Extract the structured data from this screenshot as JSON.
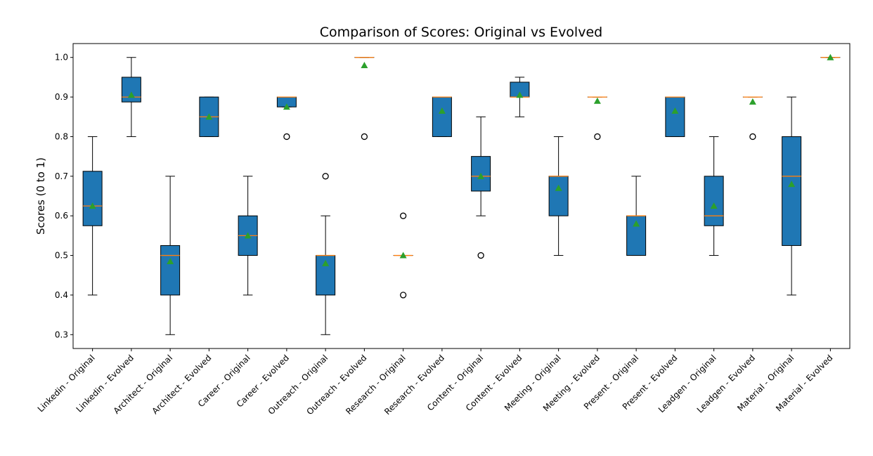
{
  "chart_data": {
    "type": "box",
    "title": "Comparison of Scores: Original vs Evolved",
    "xlabel": "",
    "ylabel": "Scores (0 to 1)",
    "ylim": [
      0.265,
      1.035
    ],
    "yticks": [
      0.3,
      0.4,
      0.5,
      0.6,
      0.7,
      0.8,
      0.9,
      1.0
    ],
    "ytick_labels": [
      "0.3",
      "0.4",
      "0.5",
      "0.6",
      "0.7",
      "0.8",
      "0.9",
      "1.0"
    ],
    "grid": false,
    "colors": {
      "box_fill": "#1f77b4",
      "median": "#ff7f0e",
      "mean_marker": "#2ca02c",
      "outline": "#000000"
    },
    "categories": [
      "Linkedin - Original",
      "Linkedin - Evolved",
      "Architect - Original",
      "Architect - Evolved",
      "Career - Original",
      "Career - Evolved",
      "Outreach - Original",
      "Outreach - Evolved",
      "Research - Original",
      "Research - Evolved",
      "Content - Original",
      "Content - Evolved",
      "Meeting - Original",
      "Meeting - Evolved",
      "Present - Original",
      "Present - Evolved",
      "Leadgen - Original",
      "Leadgen - Evolved",
      "Material - Original",
      "Material - Evolved"
    ],
    "boxes": [
      {
        "whislo": 0.4,
        "q1": 0.575,
        "med": 0.625,
        "q3": 0.7125,
        "whishi": 0.8,
        "mean": 0.625,
        "fliers": []
      },
      {
        "whislo": 0.8,
        "q1": 0.8875,
        "med": 0.9,
        "q3": 0.95,
        "whishi": 1.0,
        "mean": 0.905,
        "fliers": []
      },
      {
        "whislo": 0.3,
        "q1": 0.4,
        "med": 0.5,
        "q3": 0.525,
        "whishi": 0.7,
        "mean": 0.485,
        "fliers": []
      },
      {
        "whislo": 0.8,
        "q1": 0.8,
        "med": 0.85,
        "q3": 0.9,
        "whishi": 0.9,
        "mean": 0.85,
        "fliers": []
      },
      {
        "whislo": 0.4,
        "q1": 0.5,
        "med": 0.55,
        "q3": 0.6,
        "whishi": 0.7,
        "mean": 0.55,
        "fliers": []
      },
      {
        "whislo": 0.875,
        "q1": 0.875,
        "med": 0.9,
        "q3": 0.9,
        "whishi": 0.9,
        "mean": 0.875,
        "fliers": [
          0.8
        ]
      },
      {
        "whislo": 0.3,
        "q1": 0.4,
        "med": 0.5,
        "q3": 0.5,
        "whishi": 0.6,
        "mean": 0.48,
        "fliers": [
          0.7
        ]
      },
      {
        "whislo": 1.0,
        "q1": 1.0,
        "med": 1.0,
        "q3": 1.0,
        "whishi": 1.0,
        "mean": 0.98,
        "fliers": [
          0.8
        ]
      },
      {
        "whislo": 0.5,
        "q1": 0.5,
        "med": 0.5,
        "q3": 0.5,
        "whishi": 0.5,
        "mean": 0.5,
        "fliers": [
          0.4,
          0.6
        ]
      },
      {
        "whislo": 0.8,
        "q1": 0.8,
        "med": 0.9,
        "q3": 0.9,
        "whishi": 0.9,
        "mean": 0.865,
        "fliers": []
      },
      {
        "whislo": 0.6,
        "q1": 0.6625,
        "med": 0.7,
        "q3": 0.75,
        "whishi": 0.85,
        "mean": 0.7,
        "fliers": [
          0.5
        ]
      },
      {
        "whislo": 0.85,
        "q1": 0.9,
        "med": 0.9,
        "q3": 0.9375,
        "whishi": 0.95,
        "mean": 0.905,
        "fliers": []
      },
      {
        "whislo": 0.5,
        "q1": 0.6,
        "med": 0.7,
        "q3": 0.7,
        "whishi": 0.8,
        "mean": 0.67,
        "fliers": []
      },
      {
        "whislo": 0.9,
        "q1": 0.9,
        "med": 0.9,
        "q3": 0.9,
        "whishi": 0.9,
        "mean": 0.89,
        "fliers": [
          0.8
        ]
      },
      {
        "whislo": 0.5,
        "q1": 0.5,
        "med": 0.6,
        "q3": 0.6,
        "whishi": 0.7,
        "mean": 0.58,
        "fliers": []
      },
      {
        "whislo": 0.8,
        "q1": 0.8,
        "med": 0.9,
        "q3": 0.9,
        "whishi": 0.9,
        "mean": 0.865,
        "fliers": []
      },
      {
        "whislo": 0.5,
        "q1": 0.575,
        "med": 0.6,
        "q3": 0.7,
        "whishi": 0.8,
        "mean": 0.625,
        "fliers": []
      },
      {
        "whislo": 0.9,
        "q1": 0.9,
        "med": 0.9,
        "q3": 0.9,
        "whishi": 0.9,
        "mean": 0.888,
        "fliers": [
          0.8
        ]
      },
      {
        "whislo": 0.4,
        "q1": 0.525,
        "med": 0.7,
        "q3": 0.8,
        "whishi": 0.9,
        "mean": 0.68,
        "fliers": []
      },
      {
        "whislo": 1.0,
        "q1": 1.0,
        "med": 1.0,
        "q3": 1.0,
        "whishi": 1.0,
        "mean": 1.0,
        "fliers": []
      }
    ]
  }
}
